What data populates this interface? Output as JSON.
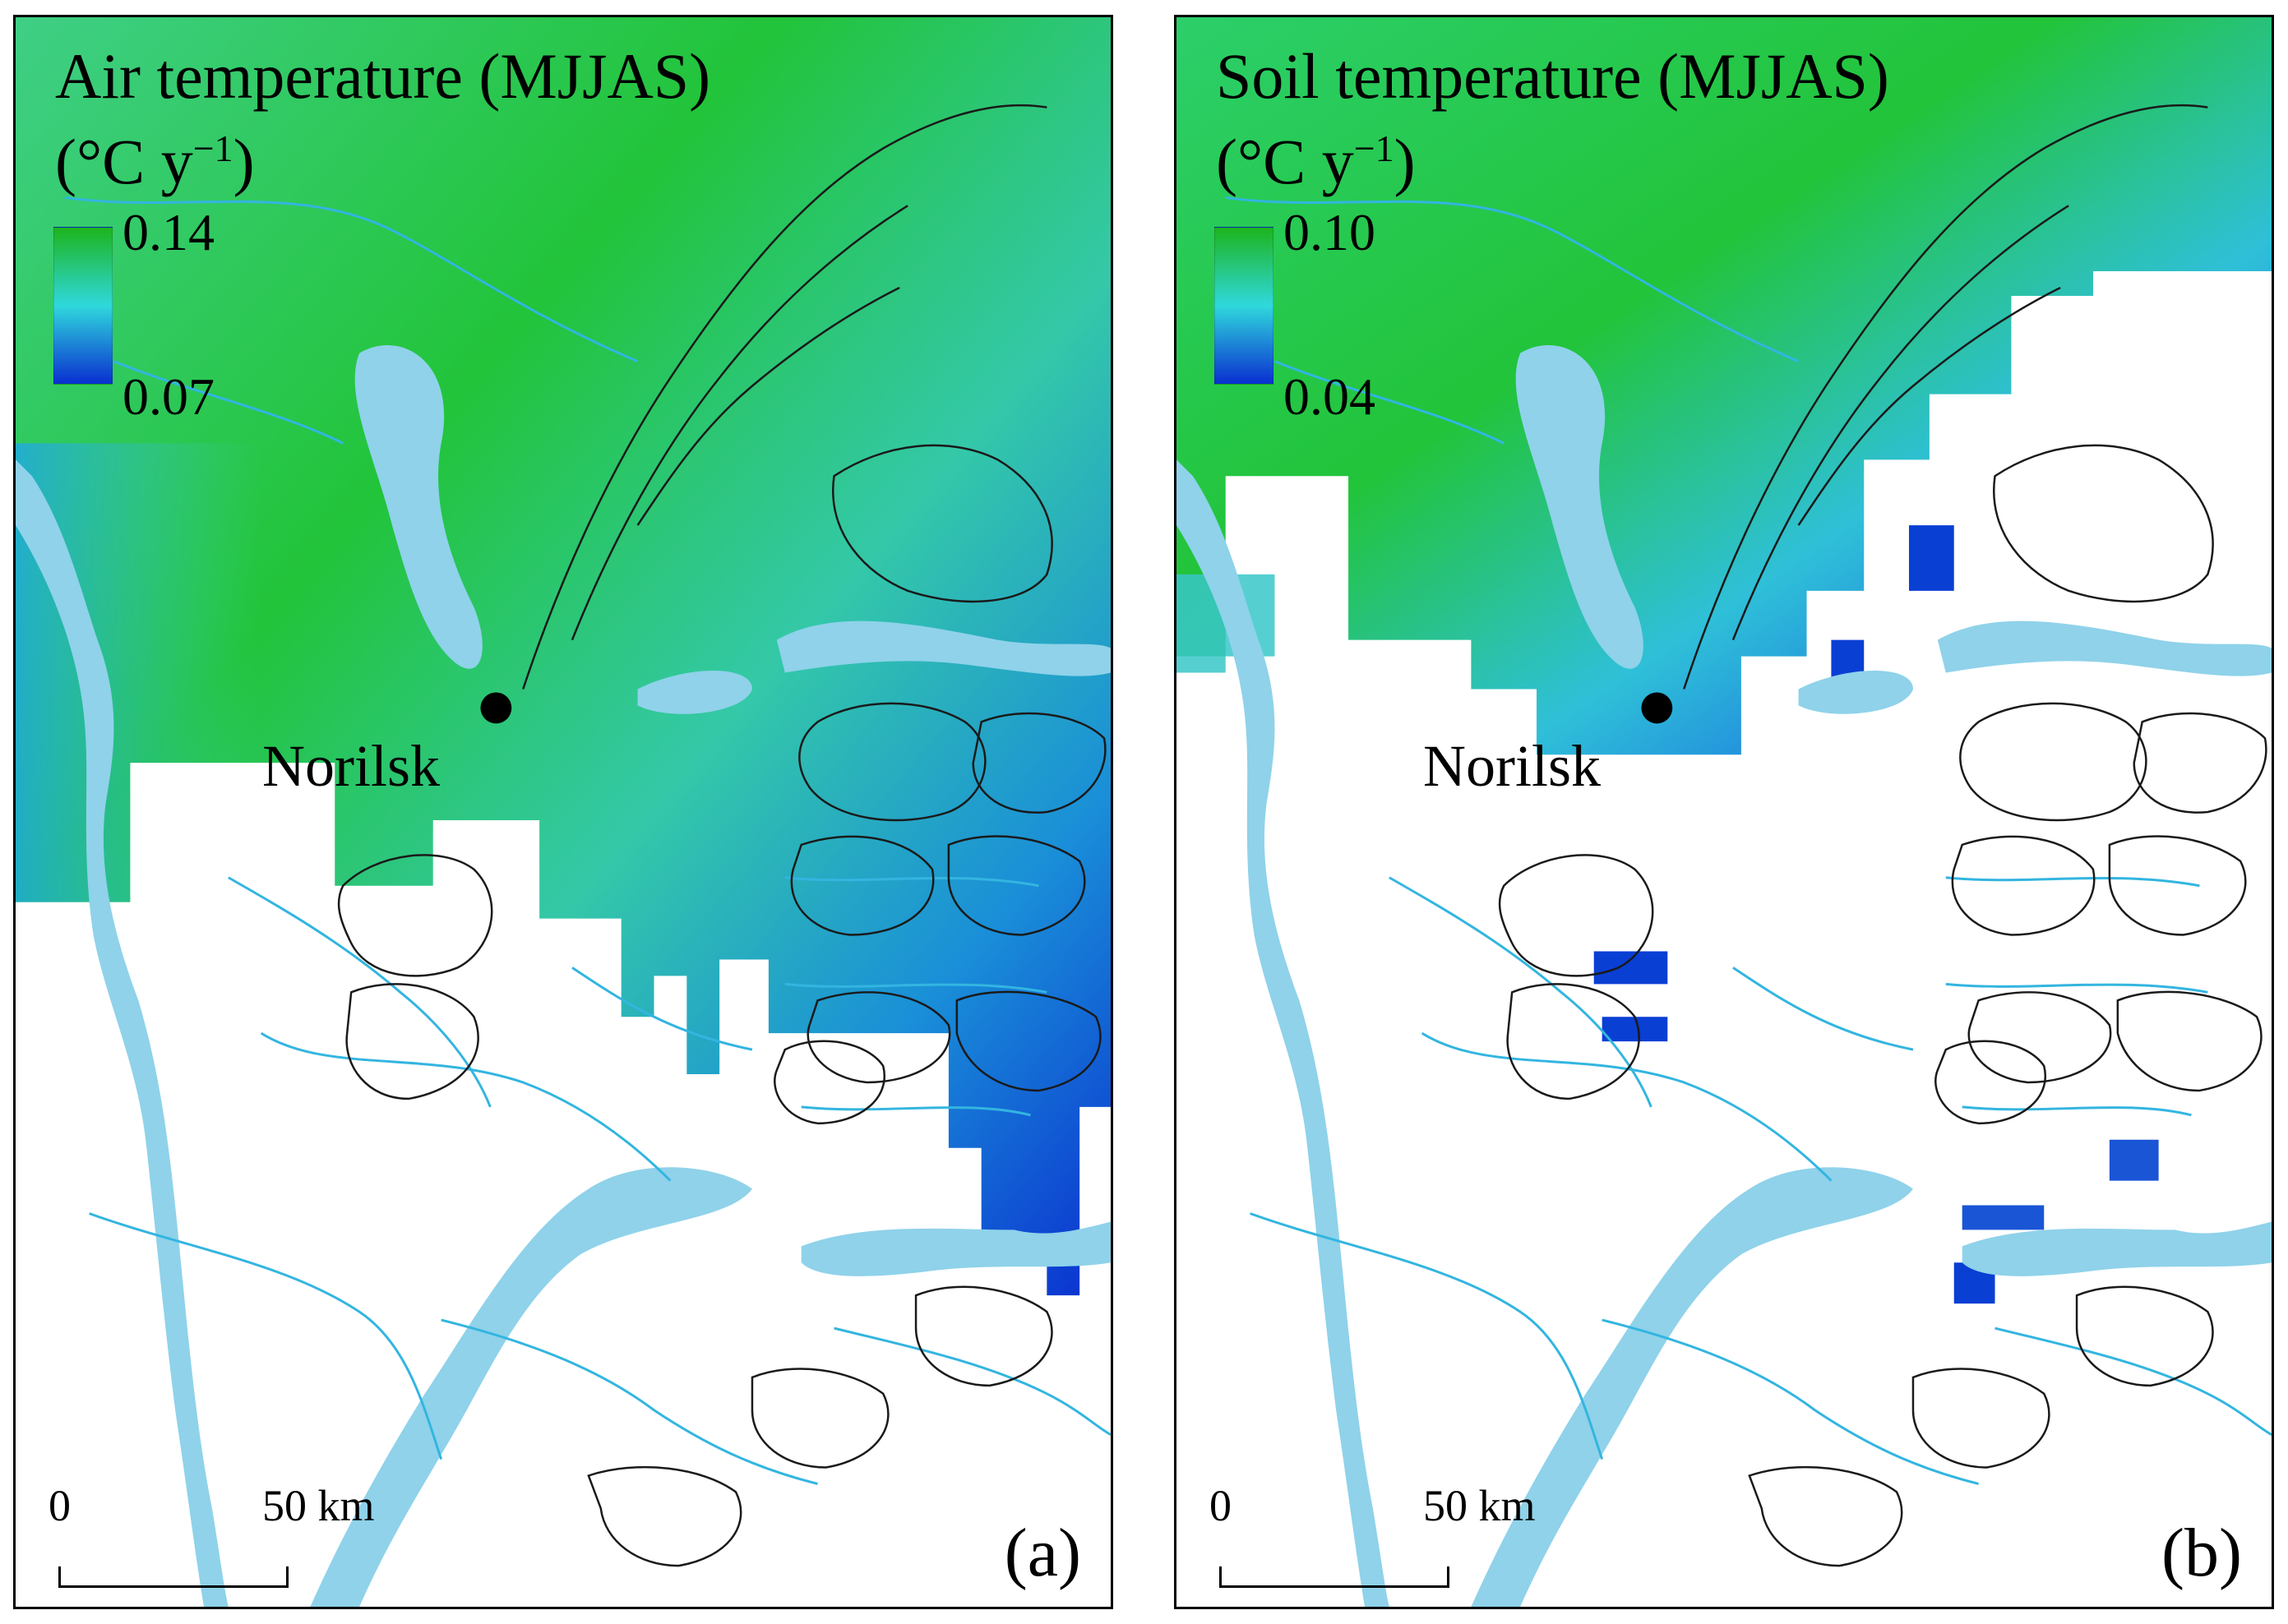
{
  "colors": {
    "high": "#1db41d",
    "mid": "#2fd8dc",
    "low": "#0a2fd0",
    "water": "#8fd2ea",
    "river": "#33b5e0",
    "contour": "#1a1a1a"
  },
  "panels": [
    {
      "id": "a",
      "title_line1": "Air temperature (MJJAS)",
      "title_unit": "(°C y",
      "title_unit_exp": "−1",
      "title_unit_close": ")",
      "legend_max": "0.14",
      "legend_min": "0.07",
      "city_label": "Norilsk",
      "scale_zero": "0",
      "scale_distance": "50 km",
      "letter": "(a)"
    },
    {
      "id": "b",
      "title_line1": "Soil temperature (MJJAS)",
      "title_unit": "(°C y",
      "title_unit_exp": "−1",
      "title_unit_close": ")",
      "legend_max": "0.10",
      "legend_min": "0.04",
      "city_label": "Norilsk",
      "scale_zero": "0",
      "scale_distance": "50 km",
      "letter": "(b)"
    }
  ]
}
